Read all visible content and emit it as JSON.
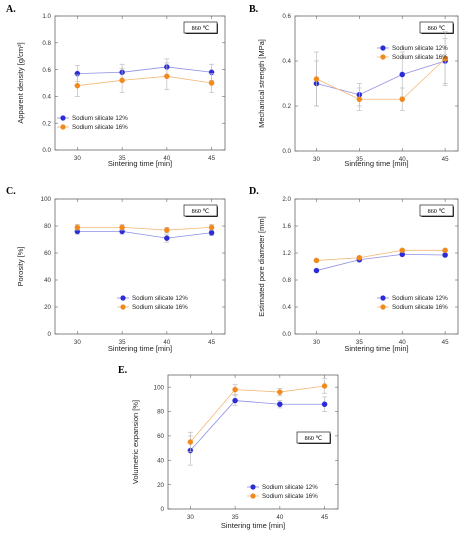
{
  "chart_data": [
    {
      "panel": "A.",
      "type": "line",
      "x": [
        30,
        35,
        40,
        45
      ],
      "xlabel": "Sintering time [min]",
      "ylabel": "Apparent density [g/cm³]",
      "ylim": [
        0.0,
        1.0
      ],
      "yticks": [
        "0.0",
        "0.2",
        "0.4",
        "0.6",
        "0.8",
        "1.0"
      ],
      "xticks": [
        "30",
        "35",
        "40",
        "45"
      ],
      "annotation": "860 ℃",
      "legend_position": "lower-left",
      "series": [
        {
          "name": "Sodium silicate 12%",
          "values": [
            0.57,
            0.58,
            0.62,
            0.58
          ],
          "errors": [
            0.06,
            0.06,
            0.06,
            0.06
          ],
          "color": "#2b2bd9"
        },
        {
          "name": "Sodium silicate 16%",
          "values": [
            0.48,
            0.52,
            0.55,
            0.5
          ],
          "errors": [
            0.08,
            0.09,
            0.1,
            0.07
          ],
          "color": "#f08a1c"
        }
      ]
    },
    {
      "panel": "B.",
      "type": "line",
      "x": [
        30,
        35,
        40,
        45
      ],
      "xlabel": "Sintering time [min]",
      "ylabel": "Mechanical strength [MPa]",
      "ylim": [
        0.0,
        0.6
      ],
      "yticks": [
        "0.0",
        "0.2",
        "0.4",
        "0.6"
      ],
      "xticks": [
        "30",
        "35",
        "40",
        "45"
      ],
      "annotation": "860 ℃",
      "legend_position": "top-right",
      "series": [
        {
          "name": "Sodium silicate 12%",
          "values": [
            0.3,
            0.25,
            0.34,
            0.4
          ],
          "errors": [
            0.1,
            0.05,
            0.1,
            0.1
          ],
          "color": "#2b2bd9"
        },
        {
          "name": "Sodium silicate 16%",
          "values": [
            0.32,
            0.23,
            0.23,
            0.41
          ],
          "errors": [
            0.12,
            0.05,
            0.05,
            0.12
          ],
          "color": "#f08a1c"
        }
      ]
    },
    {
      "panel": "C.",
      "type": "line",
      "x": [
        30,
        35,
        40,
        45
      ],
      "xlabel": "Sintering time [min]",
      "ylabel": "Porosity [%]",
      "ylim": [
        0,
        100
      ],
      "yticks": [
        "0",
        "20",
        "40",
        "60",
        "80",
        "100"
      ],
      "xticks": [
        "30",
        "35",
        "40",
        "45"
      ],
      "annotation": "860 ℃",
      "legend_position": "lower-right",
      "series": [
        {
          "name": "Sodium silicate 12%",
          "values": [
            76,
            76,
            71,
            75
          ],
          "errors": [
            2,
            2,
            3,
            2
          ],
          "color": "#2b2bd9"
        },
        {
          "name": "Sodium silicate 16%",
          "values": [
            79,
            79,
            77,
            79
          ],
          "errors": [
            2,
            2,
            2,
            2
          ],
          "color": "#f08a1c"
        }
      ]
    },
    {
      "panel": "D.",
      "type": "line",
      "x": [
        30,
        35,
        40,
        45
      ],
      "xlabel": "Sintering time [min]",
      "ylabel": "Estimated pore diameter [mm]",
      "ylim": [
        0.0,
        2.0
      ],
      "yticks": [
        "0.0",
        "0.4",
        "0.8",
        "1.2",
        "1.6",
        "2.0"
      ],
      "xticks": [
        "30",
        "35",
        "40",
        "45"
      ],
      "annotation": "860 ℃",
      "legend_position": "lower-right",
      "series": [
        {
          "name": "Sodium silicate 12%",
          "values": [
            0.94,
            1.1,
            1.18,
            1.17
          ],
          "errors": [
            0.02,
            0.02,
            0.02,
            0.02
          ],
          "color": "#2b2bd9"
        },
        {
          "name": "Sodium silicate 16%",
          "values": [
            1.09,
            1.13,
            1.24,
            1.24
          ],
          "errors": [
            0.02,
            0.02,
            0.02,
            0.02
          ],
          "color": "#f08a1c"
        }
      ]
    },
    {
      "panel": "E.",
      "type": "line",
      "x": [
        30,
        35,
        40,
        45
      ],
      "xlabel": "Sintering time [min]",
      "ylabel": "Volumetric expansion [%]",
      "ylim": [
        0,
        110
      ],
      "yticks": [
        "0",
        "20",
        "40",
        "60",
        "80",
        "100"
      ],
      "xticks": [
        "30",
        "35",
        "40",
        "45"
      ],
      "annotation": "860 ℃",
      "legend_position": "lower-right",
      "series": [
        {
          "name": "Sodium silicate 12%",
          "values": [
            48,
            89,
            86,
            86
          ],
          "errors": [
            12,
            4,
            3,
            6
          ],
          "color": "#2b2bd9"
        },
        {
          "name": "Sodium silicate 16%",
          "values": [
            55,
            98,
            96,
            101
          ],
          "errors": [
            8,
            4,
            3,
            6
          ],
          "color": "#f08a1c"
        }
      ]
    }
  ]
}
